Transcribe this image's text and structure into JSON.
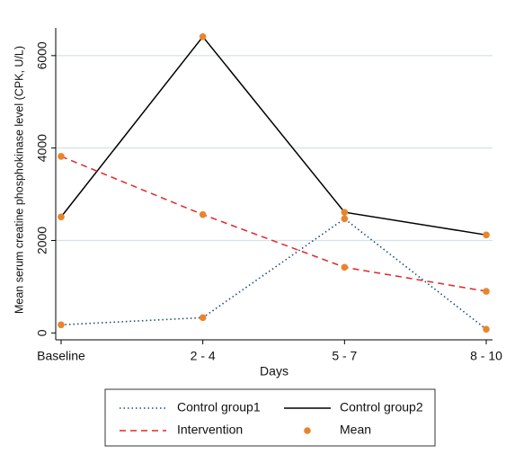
{
  "chart_data": {
    "type": "line",
    "y_label": "Mean serum creatine phosphokinase level (CPK, U/L)",
    "x_label": "Days",
    "categories": [
      "Baseline",
      "2 - 4",
      "5 - 7",
      "8 - 10"
    ],
    "series": [
      {
        "name": "Control group1",
        "color": "#1f4e79",
        "line_style": "dotted",
        "values": [
          175,
          330,
          2470,
          80
        ]
      },
      {
        "name": "Control group2",
        "color": "#000000",
        "line_style": "solid",
        "values": [
          2510,
          6410,
          2610,
          2120
        ]
      },
      {
        "name": "Intervention",
        "color": "#e32626",
        "line_style": "dashed",
        "values": [
          3820,
          2560,
          1420,
          900
        ]
      }
    ],
    "markers": {
      "name": "Mean",
      "color": "#e8852c"
    },
    "ylim": [
      -150,
      6600
    ],
    "yticks": [
      0,
      2000,
      4000,
      6000
    ],
    "grid": true
  }
}
